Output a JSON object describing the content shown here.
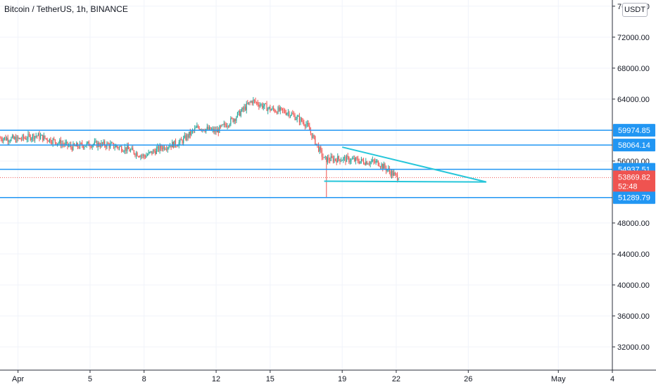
{
  "header": {
    "symbol_title": "Bitcoin / TetherUS, 1h, BINANCE",
    "currency_button": "USDT"
  },
  "colors": {
    "level_line": "#2196f3",
    "trend_line": "#26c6da",
    "candle_up": "#26a69a",
    "candle_down": "#ef5350",
    "current_price": "#ef5350",
    "grid": "#f0f3fa",
    "axis_text": "#131722"
  },
  "chart_data": {
    "type": "candlestick",
    "y_axis": {
      "scale": "linear",
      "ticks": [
        "32000.00",
        "36000.00",
        "40000.00",
        "44000.00",
        "48000.00",
        "56000.00",
        "64000.00",
        "68000.00",
        "72000.00",
        "76000.00"
      ],
      "ylim": [
        29000,
        76800
      ]
    },
    "x_axis": {
      "ticks": [
        "Apr",
        "5",
        "8",
        "12",
        "15",
        "19",
        "22",
        "26",
        "May",
        "4"
      ],
      "xlim_date": [
        "2021-03-31",
        "2021-05-04"
      ]
    },
    "price_levels": [
      {
        "label": "59974.85",
        "value": 59974.85
      },
      {
        "label": "58064.14",
        "value": 58064.14
      },
      {
        "label": "54937.51",
        "value": 54937.51
      },
      {
        "label": "51289.79",
        "value": 51289.79
      }
    ],
    "current_price": {
      "label": "53869.82",
      "countdown": "52:48",
      "value": 53869.82
    },
    "trend_lines": [
      {
        "from": [
          "2021-04-19",
          57800
        ],
        "to": [
          "2021-04-27",
          53300
        ]
      },
      {
        "from": [
          "2021-04-18",
          53400
        ],
        "to": [
          "2021-04-27",
          53300
        ]
      }
    ],
    "price_path": [
      [
        "2021-03-31",
        59000
      ],
      [
        "2021-04-01",
        58800
      ],
      [
        "2021-04-02",
        59300
      ],
      [
        "2021-04-03",
        58600
      ],
      [
        "2021-04-04",
        57800
      ],
      [
        "2021-04-05",
        58200
      ],
      [
        "2021-04-06",
        58100
      ],
      [
        "2021-04-07",
        57600
      ],
      [
        "2021-04-08",
        56600
      ],
      [
        "2021-04-09",
        57800
      ],
      [
        "2021-04-10",
        58400
      ],
      [
        "2021-04-11",
        60400
      ],
      [
        "2021-04-12",
        59800
      ],
      [
        "2021-04-13",
        61500
      ],
      [
        "2021-04-14",
        63800
      ],
      [
        "2021-04-15",
        62700
      ],
      [
        "2021-04-16",
        62300
      ],
      [
        "2021-04-17",
        60800
      ],
      [
        "2021-04-18",
        56200
      ],
      [
        "2021-04-19",
        56300
      ],
      [
        "2021-04-20",
        56000
      ],
      [
        "2021-04-21",
        55800
      ],
      [
        "2021-04-22",
        54000
      ]
    ]
  }
}
